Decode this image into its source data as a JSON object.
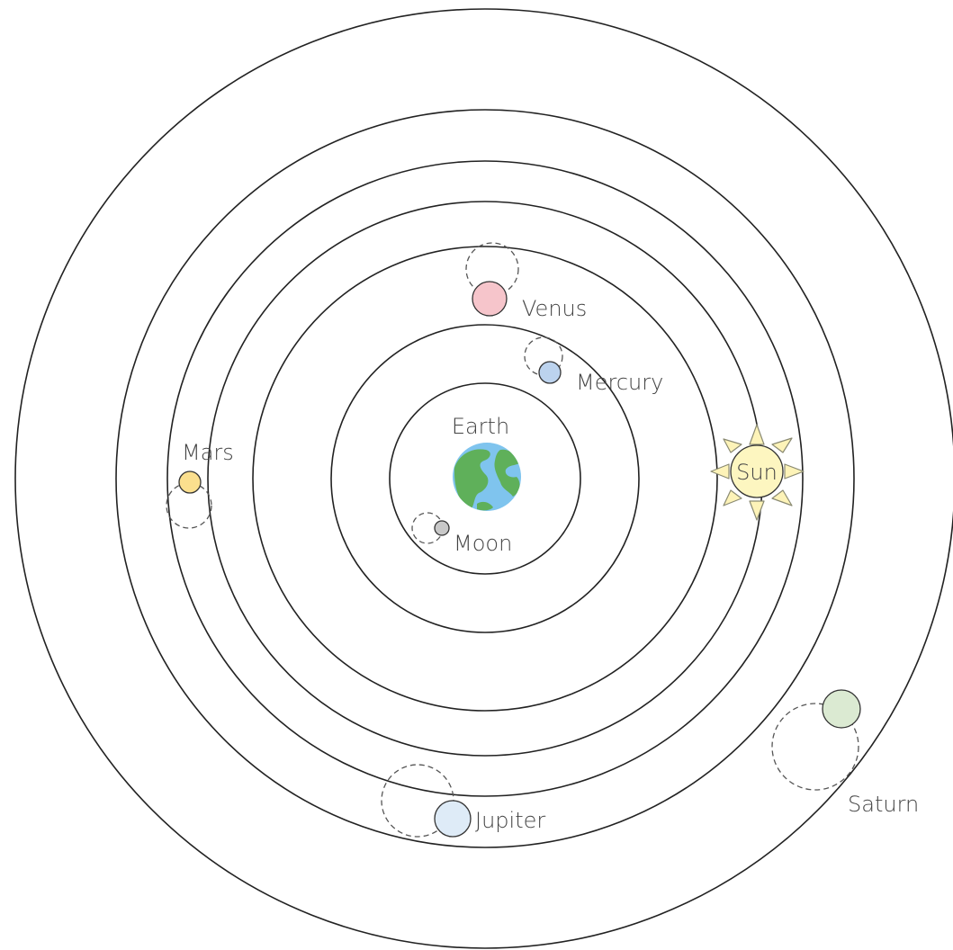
{
  "diagram": {
    "labels": {
      "earth": "Earth",
      "moon": "Moon",
      "mercury": "Mercury",
      "venus": "Venus",
      "sun": "Sun",
      "mars": "Mars",
      "jupiter": "Jupiter",
      "saturn": "Saturn"
    },
    "colors": {
      "moon": "#c8c8c8",
      "mercury": "#bcd3ee",
      "venus": "#f6c5cb",
      "sun": "#fdf6c0",
      "mars": "#fbdf8e",
      "jupiter": "#deebf7",
      "saturn": "#dbead2",
      "earth_ocean": "#7fc4ee",
      "earth_land": "#5fb05a"
    }
  }
}
